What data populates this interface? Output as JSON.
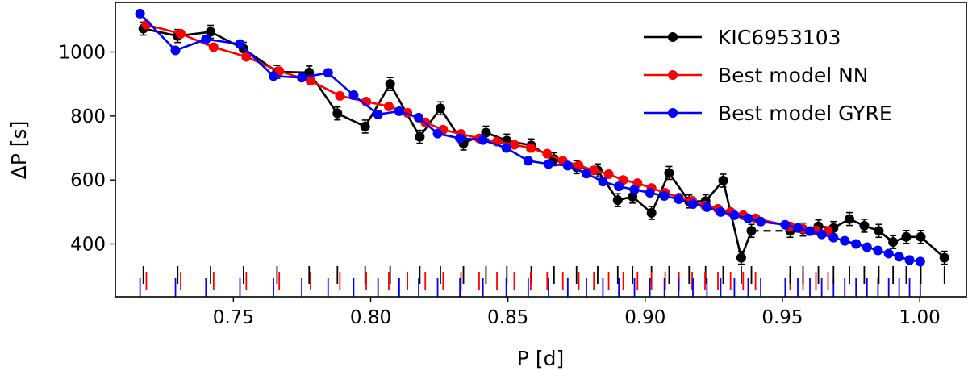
{
  "chart_data": {
    "type": "line",
    "xlabel": "P [d]",
    "ylabel": "ΔP [s]",
    "xlim": [
      0.707,
      1.017
    ],
    "ylim": [
      235,
      1155
    ],
    "xticks": [
      0.75,
      0.8,
      0.85,
      0.9,
      0.95,
      1.0
    ],
    "xtick_labels": [
      "0.75",
      "0.80",
      "0.85",
      "0.90",
      "0.95",
      "1.00"
    ],
    "yticks": [
      400,
      600,
      800,
      1000
    ],
    "ytick_labels": [
      "400",
      "600",
      "800",
      "1000"
    ],
    "grid": false,
    "legend_position": "top-right",
    "legend": [
      "KIC6953103",
      "Best model NN",
      "Best model GYRE"
    ],
    "series": [
      {
        "name": "KIC6953103",
        "color": "#000000",
        "x": [
          0.7172,
          0.7297,
          0.7417,
          0.7537,
          0.7659,
          0.7776,
          0.7879,
          0.798,
          0.8071,
          0.8179,
          0.8254,
          0.8338,
          0.842,
          0.8496,
          0.8585,
          0.8668,
          0.875,
          0.8827,
          0.89,
          0.8954,
          0.9023,
          0.9087,
          0.916,
          0.922,
          0.9284,
          0.935,
          0.9387
        ],
        "y": [
          1073,
          1050,
          1063,
          1010,
          938,
          936,
          808,
          767,
          900,
          735,
          824,
          714,
          748,
          723,
          708,
          665,
          640,
          630,
          537,
          548,
          497,
          622,
          533,
          534,
          598,
          357,
          441
        ],
        "segment_style": "solid"
      },
      {
        "name": "",
        "color": "#000000",
        "x": [
          0.9528,
          0.9575,
          0.9631,
          0.9686,
          0.9744,
          0.9798,
          0.9851,
          0.9903,
          0.9951,
          1.0004,
          1.009
        ],
        "y": [
          441,
          445,
          455,
          450,
          478,
          457,
          441,
          406,
          422,
          422,
          357
        ],
        "segment_style": "solid",
        "connector_from_previous": "dashed"
      },
      {
        "name": "Best model NN",
        "color": "#ff0000",
        "x": [
          0.7183,
          0.7308,
          0.7428,
          0.7547,
          0.7667,
          0.7781,
          0.7888,
          0.7984,
          0.8066,
          0.8134,
          0.8199,
          0.8264,
          0.8329,
          0.8395,
          0.846,
          0.8523,
          0.8583,
          0.8643,
          0.87,
          0.8758,
          0.8813,
          0.8867,
          0.892,
          0.8972,
          0.9023,
          0.9073,
          0.9123,
          0.9171,
          0.9218,
          0.9265,
          0.9311,
          0.9357,
          0.9402,
          0.9528,
          0.9575,
          0.9622,
          0.9666
        ],
        "y": [
          1085,
          1057,
          1015,
          985,
          940,
          910,
          863,
          845,
          830,
          810,
          780,
          757,
          744,
          730,
          720,
          710,
          700,
          682,
          660,
          645,
          630,
          618,
          600,
          590,
          575,
          560,
          545,
          535,
          520,
          510,
          500,
          490,
          480,
          455,
          447,
          442,
          440
        ]
      },
      {
        "name": "Best model GYRE",
        "color": "#0000ff",
        "x": [
          0.716,
          0.7289,
          0.74,
          0.7524,
          0.7646,
          0.7749,
          0.7845,
          0.7938,
          0.8027,
          0.8104,
          0.8175,
          0.8244,
          0.8325,
          0.8409,
          0.8494,
          0.8574,
          0.8648,
          0.8718,
          0.8786,
          0.8846,
          0.8904,
          0.8961,
          0.9017,
          0.907,
          0.9122,
          0.9174,
          0.9225,
          0.9275,
          0.9325,
          0.9375,
          0.9421,
          0.951,
          0.9556,
          0.96,
          0.9643,
          0.9686,
          0.9727,
          0.9768,
          0.9808,
          0.9848,
          0.9887,
          0.9925,
          0.9963,
          1.0002
        ],
        "y": [
          1120,
          1005,
          1040,
          1025,
          925,
          920,
          935,
          865,
          805,
          815,
          795,
          745,
          730,
          725,
          700,
          660,
          650,
          645,
          620,
          595,
          580,
          570,
          560,
          550,
          540,
          525,
          515,
          500,
          490,
          480,
          470,
          460,
          450,
          440,
          430,
          420,
          410,
          400,
          390,
          380,
          370,
          360,
          350,
          345
        ]
      }
    ]
  }
}
